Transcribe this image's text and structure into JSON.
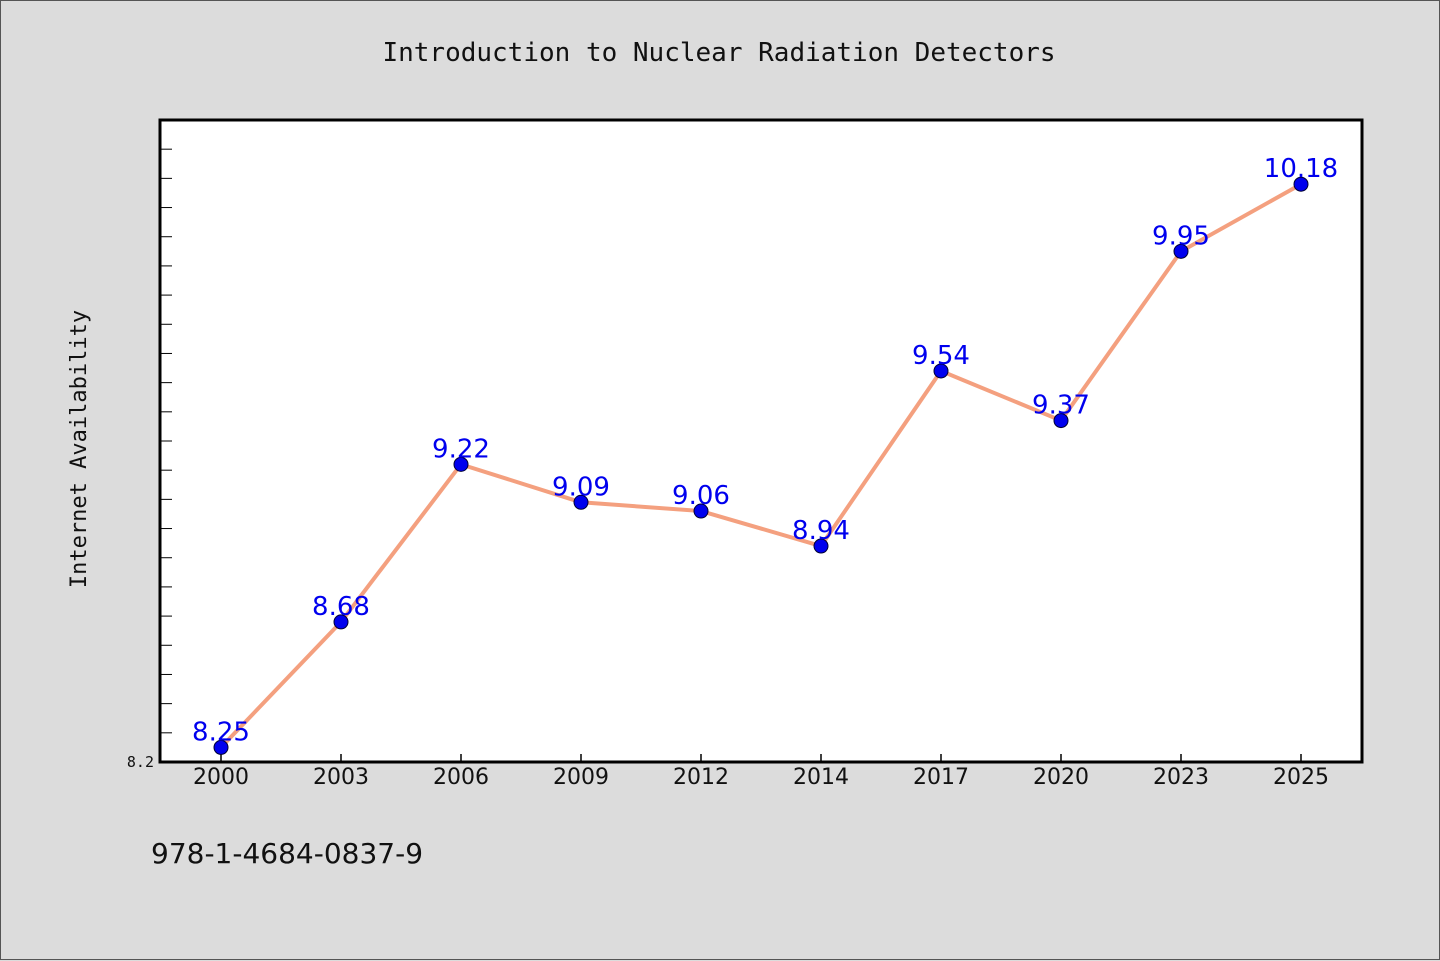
{
  "chart_data": {
    "type": "line",
    "title": "Introduction to Nuclear Radiation Detectors",
    "xlabel": "",
    "ylabel": "Internet Availability",
    "categories": [
      "2000",
      "2003",
      "2006",
      "2009",
      "2012",
      "2014",
      "2017",
      "2020",
      "2023",
      "2025"
    ],
    "series": [
      {
        "values": [
          8.25,
          8.68,
          9.22,
          9.09,
          9.06,
          8.94,
          9.54,
          9.37,
          9.95,
          10.18
        ],
        "line_color": "#f4a07f",
        "marker_color": "#0000ee",
        "label_color": "#0000ee"
      }
    ],
    "ylim": [
      8.2,
      10.4
    ],
    "y_tick_labels": [
      "8.2"
    ],
    "y_minor_step": 0.1,
    "grid": false,
    "legend": "none"
  },
  "footer": {
    "isbn": "978-1-4684-0837-9"
  }
}
